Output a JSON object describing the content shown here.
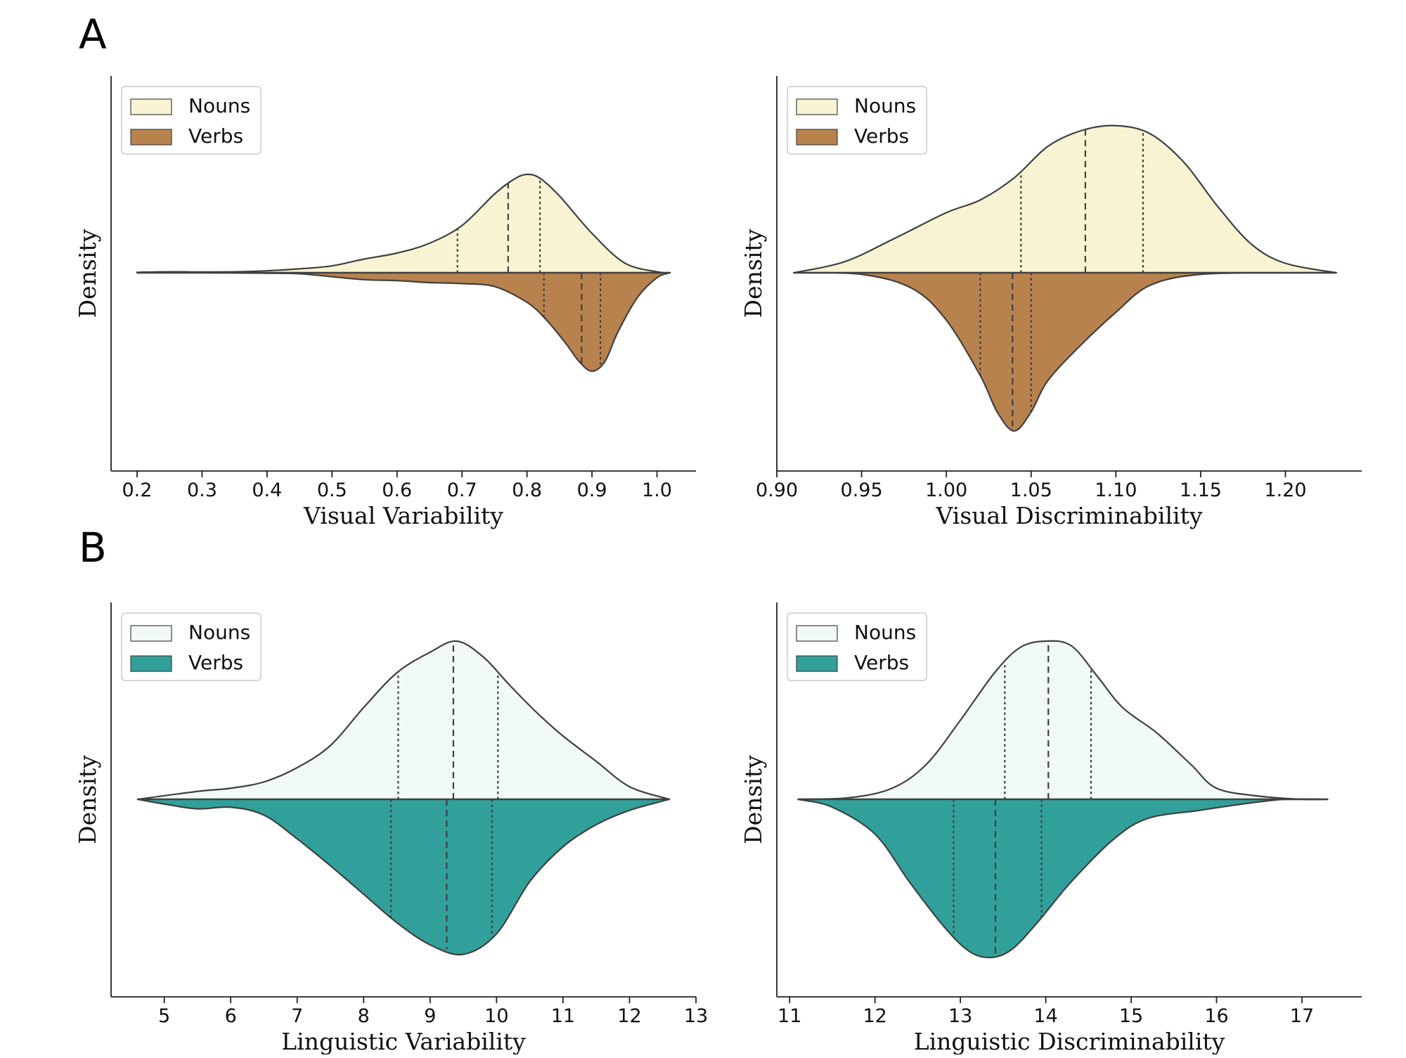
{
  "panels": [
    {
      "letter": "A"
    },
    {
      "letter": "B"
    }
  ],
  "chart_data": [
    {
      "type": "violin-split",
      "xlabel": "Visual Variability",
      "ylabel": "Density",
      "xlim": [
        0.16,
        1.06
      ],
      "xticks": [
        0.2,
        0.3,
        0.4,
        0.5,
        0.6,
        0.7,
        0.8,
        0.9,
        1.0
      ],
      "xtick_labels": [
        "0.2",
        "0.3",
        "0.4",
        "0.5",
        "0.6",
        "0.7",
        "0.8",
        "0.9",
        "1.0"
      ],
      "legend": {
        "position": "top-left",
        "entries": [
          "Nouns",
          "Verbs"
        ]
      },
      "colors": {
        "Nouns": "#f8f4d3",
        "Verbs": "#b8824f"
      },
      "series": [
        {
          "name": "Nouns",
          "side": "upper",
          "x": [
            0.2,
            0.25,
            0.3,
            0.35,
            0.4,
            0.45,
            0.5,
            0.55,
            0.6,
            0.65,
            0.7,
            0.75,
            0.78,
            0.8,
            0.82,
            0.85,
            0.9,
            0.95,
            1.0,
            1.02
          ],
          "density": [
            0.005,
            0.01,
            0.008,
            0.01,
            0.02,
            0.04,
            0.07,
            0.14,
            0.2,
            0.3,
            0.48,
            0.8,
            0.95,
            1.0,
            0.96,
            0.78,
            0.4,
            0.1,
            0.01,
            0.0
          ],
          "quartiles": [
            0.693,
            0.771,
            0.82
          ]
        },
        {
          "name": "Verbs",
          "side": "lower",
          "x": [
            0.2,
            0.3,
            0.4,
            0.45,
            0.5,
            0.55,
            0.6,
            0.65,
            0.7,
            0.75,
            0.8,
            0.83,
            0.86,
            0.88,
            0.9,
            0.92,
            0.94,
            0.97,
            1.0,
            1.02
          ],
          "density": [
            0.0,
            0.0,
            0.005,
            0.01,
            0.04,
            0.07,
            0.08,
            0.1,
            0.11,
            0.14,
            0.3,
            0.48,
            0.72,
            0.9,
            1.0,
            0.9,
            0.6,
            0.25,
            0.05,
            0.0
          ],
          "quartiles": [
            0.826,
            0.884,
            0.913
          ]
        }
      ]
    },
    {
      "type": "violin-split",
      "xlabel": "Visual Discriminability",
      "ylabel": "Density",
      "xlim": [
        0.9,
        1.245
      ],
      "xticks": [
        0.9,
        0.95,
        1.0,
        1.05,
        1.1,
        1.15,
        1.2
      ],
      "xtick_labels": [
        "0.90",
        "0.95",
        "1.00",
        "1.05",
        "1.10",
        "1.15",
        "1.20"
      ],
      "legend": {
        "position": "top-left",
        "entries": [
          "Nouns",
          "Verbs"
        ]
      },
      "colors": {
        "Nouns": "#f8f4d3",
        "Verbs": "#b8824f"
      },
      "series": [
        {
          "name": "Nouns",
          "side": "upper",
          "x": [
            0.91,
            0.94,
            0.97,
            1.0,
            1.02,
            1.04,
            1.06,
            1.08,
            1.1,
            1.12,
            1.14,
            1.16,
            1.18,
            1.2,
            1.23
          ],
          "density": [
            0.0,
            0.07,
            0.22,
            0.38,
            0.46,
            0.6,
            0.8,
            0.9,
            0.93,
            0.88,
            0.7,
            0.42,
            0.18,
            0.06,
            0.0
          ],
          "quartiles": [
            1.044,
            1.082,
            1.116
          ]
        },
        {
          "name": "Verbs",
          "side": "lower",
          "x": [
            0.91,
            0.95,
            0.98,
            1.0,
            1.02,
            1.03,
            1.04,
            1.05,
            1.06,
            1.08,
            1.1,
            1.12,
            1.15,
            1.2,
            1.23
          ],
          "density": [
            0.0,
            0.01,
            0.1,
            0.3,
            0.65,
            0.88,
            1.0,
            0.88,
            0.68,
            0.45,
            0.25,
            0.08,
            0.01,
            0.0,
            0.0
          ],
          "quartiles": [
            1.02,
            1.039,
            1.05
          ]
        }
      ]
    },
    {
      "type": "violin-split",
      "xlabel": "Linguistic Variability",
      "ylabel": "Density",
      "xlim": [
        4.2,
        13.0
      ],
      "xticks": [
        5,
        6,
        7,
        8,
        9,
        10,
        11,
        12,
        13
      ],
      "xtick_labels": [
        "5",
        "6",
        "7",
        "8",
        "9",
        "10",
        "11",
        "12",
        "13"
      ],
      "legend": {
        "position": "top-left",
        "entries": [
          "Nouns",
          "Verbs"
        ]
      },
      "colors": {
        "Nouns": "#f1faf5",
        "Verbs": "#32a09a"
      },
      "series": [
        {
          "name": "Nouns",
          "side": "upper",
          "x": [
            4.6,
            5.5,
            6.0,
            6.5,
            7.0,
            7.5,
            8.0,
            8.5,
            9.0,
            9.4,
            9.8,
            10.2,
            10.6,
            11.0,
            11.5,
            12.0,
            12.6
          ],
          "density": [
            0.0,
            0.05,
            0.07,
            0.11,
            0.2,
            0.34,
            0.58,
            0.8,
            0.93,
            1.0,
            0.9,
            0.72,
            0.55,
            0.4,
            0.24,
            0.08,
            0.0
          ],
          "quartiles": [
            8.52,
            9.35,
            10.02
          ]
        },
        {
          "name": "Verbs",
          "side": "lower",
          "x": [
            4.6,
            5.0,
            5.5,
            6.0,
            6.5,
            7.0,
            7.5,
            8.0,
            8.5,
            9.0,
            9.5,
            10.0,
            10.5,
            11.0,
            11.5,
            12.0,
            12.6
          ],
          "density": [
            0.0,
            0.03,
            0.06,
            0.05,
            0.1,
            0.25,
            0.42,
            0.6,
            0.78,
            0.92,
            0.98,
            0.85,
            0.52,
            0.3,
            0.16,
            0.07,
            0.0
          ],
          "quartiles": [
            8.41,
            9.25,
            9.93
          ]
        }
      ]
    },
    {
      "type": "violin-split",
      "xlabel": "Linguistic Discriminability",
      "ylabel": "Density",
      "xlim": [
        10.85,
        17.7
      ],
      "xticks": [
        11,
        12,
        13,
        14,
        15,
        16,
        17
      ],
      "xtick_labels": [
        "11",
        "12",
        "13",
        "14",
        "15",
        "16",
        "17"
      ],
      "legend": {
        "position": "top-left",
        "entries": [
          "Nouns",
          "Verbs"
        ]
      },
      "colors": {
        "Nouns": "#f1faf5",
        "Verbs": "#32a09a"
      },
      "series": [
        {
          "name": "Nouns",
          "side": "upper",
          "x": [
            11.1,
            11.7,
            12.2,
            12.6,
            13.0,
            13.4,
            13.7,
            14.0,
            14.3,
            14.6,
            14.9,
            15.3,
            15.7,
            16.0,
            16.5,
            17.0,
            17.3
          ],
          "density": [
            0.0,
            0.01,
            0.07,
            0.22,
            0.5,
            0.8,
            0.96,
            1.0,
            0.97,
            0.78,
            0.58,
            0.42,
            0.22,
            0.07,
            0.02,
            0.0,
            0.0
          ],
          "quartiles": [
            13.52,
            14.03,
            14.53
          ]
        },
        {
          "name": "Verbs",
          "side": "lower",
          "x": [
            11.1,
            11.5,
            12.0,
            12.4,
            12.8,
            13.1,
            13.35,
            13.6,
            13.9,
            14.3,
            14.8,
            15.2,
            15.8,
            16.3,
            16.8,
            17.3
          ],
          "density": [
            0.0,
            0.05,
            0.22,
            0.52,
            0.8,
            0.96,
            1.0,
            0.95,
            0.78,
            0.52,
            0.25,
            0.12,
            0.07,
            0.03,
            0.0,
            0.0
          ],
          "quartiles": [
            12.92,
            13.41,
            13.95
          ]
        }
      ]
    }
  ]
}
